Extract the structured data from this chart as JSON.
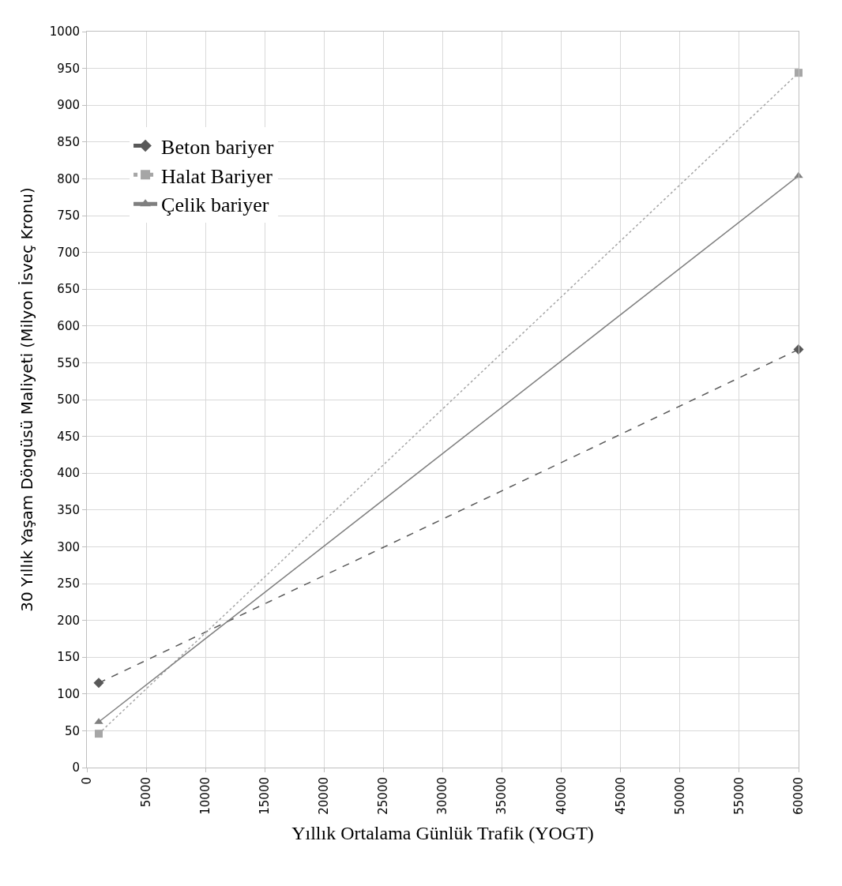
{
  "chart_data": {
    "type": "line",
    "xlabel": "Yıllık Ortalama Günlük Trafik (YOGT)",
    "ylabel": "30 Yıllık Yaşam Döngüsü Maliyeti (Milyon İsveç Kronu)",
    "x": [
      1000,
      60000
    ],
    "series": [
      {
        "name": "Beton bariyer",
        "color": "#595959",
        "values": [
          115,
          568
        ],
        "marker": "diamond",
        "line_style": "dashed"
      },
      {
        "name": "Halat Bariyer",
        "color": "#a6a6a6",
        "values": [
          46,
          944
        ],
        "marker": "square",
        "line_style": "dotted"
      },
      {
        "name": "Çelik bariyer",
        "color": "#7f7f7f",
        "values": [
          62,
          804
        ],
        "marker": "triangle",
        "line_style": "solid"
      }
    ],
    "xlim": [
      0,
      60000
    ],
    "xticks": [
      0,
      5000,
      10000,
      15000,
      20000,
      25000,
      30000,
      35000,
      40000,
      45000,
      50000,
      55000,
      60000
    ],
    "ylim": [
      0,
      1000
    ],
    "yticks": [
      0,
      50,
      100,
      150,
      200,
      250,
      300,
      350,
      400,
      450,
      500,
      550,
      600,
      650,
      700,
      750,
      800,
      850,
      900,
      950,
      1000
    ],
    "grid": true,
    "legend": "top left"
  }
}
